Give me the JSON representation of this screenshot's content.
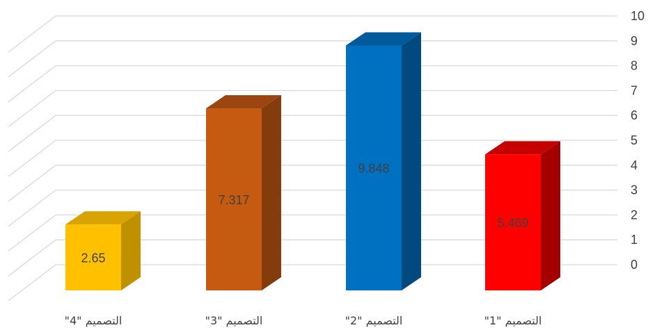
{
  "chart_data": {
    "type": "bar",
    "title": "",
    "xlabel": "",
    "ylabel": "",
    "ylim": [
      0,
      10
    ],
    "y_ticks": [
      "0",
      "1",
      "2",
      "3",
      "4",
      "5",
      "6",
      "7",
      "8",
      "9",
      "10"
    ],
    "grid": true,
    "style": "3d-column",
    "categories": [
      "التصميم \"1\"",
      "التصميم \"2\"",
      "التصميم \"3\"",
      "التصميم \"4\""
    ],
    "values": [
      5.469,
      9.848,
      7.317,
      2.65
    ],
    "value_labels": [
      "5.469",
      "9.848",
      "7.317",
      "2.65"
    ],
    "colors": [
      {
        "front": "#ff0000",
        "side": "#a50000",
        "top": "#c60000"
      },
      {
        "front": "#0070c0",
        "side": "#004a80",
        "top": "#005a9c"
      },
      {
        "front": "#c55a11",
        "side": "#843c0c",
        "top": "#9b4610"
      },
      {
        "front": "#ffc000",
        "side": "#bf9000",
        "top": "#d9a300"
      }
    ]
  }
}
